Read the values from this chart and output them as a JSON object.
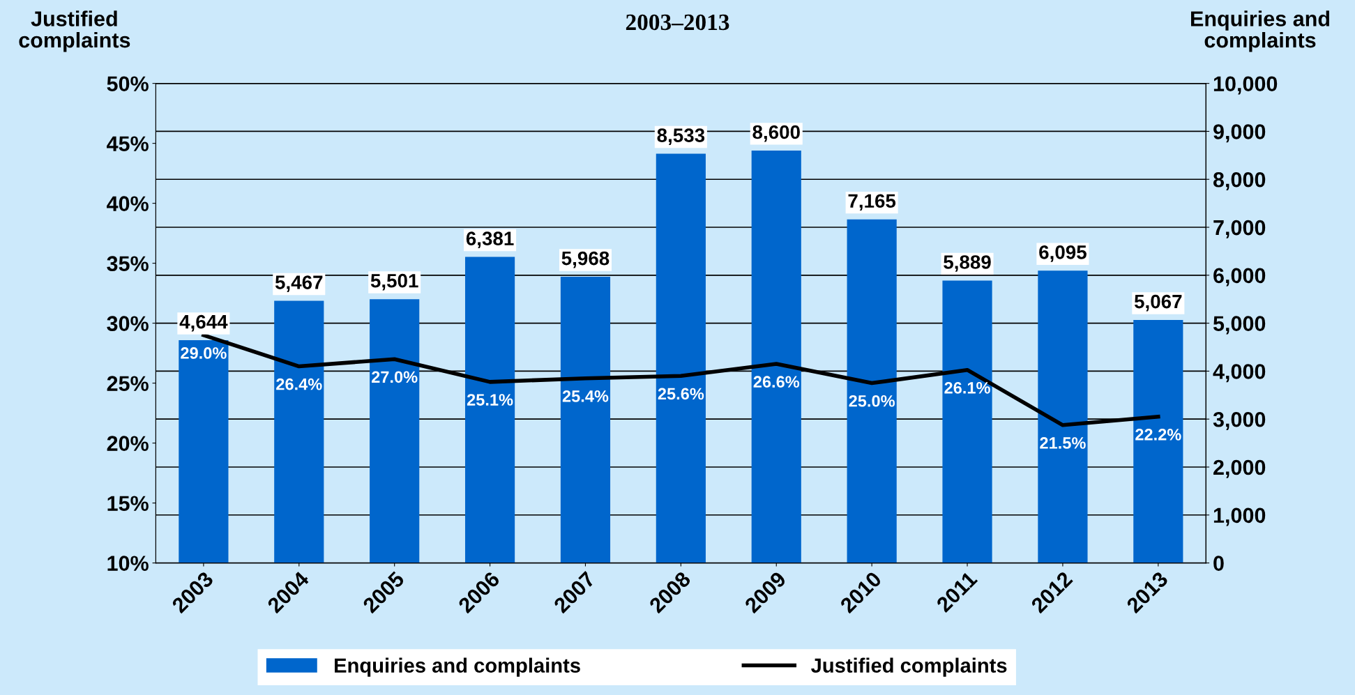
{
  "chart_data": {
    "type": "bar",
    "title": "2003–2013",
    "ylabel": "Justified complaints",
    "y2label": "Enquiries and complaints",
    "categories": [
      "2003",
      "2004",
      "2005",
      "2006",
      "2007",
      "2008",
      "2009",
      "2010",
      "2011",
      "2012",
      "2013"
    ],
    "series": [
      {
        "name": "Enquiries and complaints",
        "axis": "y2",
        "color": "#0066cc",
        "values": [
          4644,
          5467,
          5501,
          6381,
          5968,
          8533,
          8600,
          7165,
          5889,
          6095,
          5067
        ],
        "value_labels": [
          "4,644",
          "5,467",
          "5,501",
          "6,381",
          "5,968",
          "8,533",
          "8,600",
          "7,165",
          "5,889",
          "6,095",
          "5,067"
        ]
      },
      {
        "name": "Justified complaints",
        "type": "line",
        "axis": "y",
        "color": "#000000",
        "values": [
          29.0,
          26.4,
          27.0,
          25.1,
          25.4,
          25.6,
          26.6,
          25.0,
          26.1,
          21.5,
          22.2
        ],
        "value_labels": [
          "29.0%",
          "26.4%",
          "27.0%",
          "25.1%",
          "25.4%",
          "25.6%",
          "26.6%",
          "25.0%",
          "26.1%",
          "21.5%",
          "22.2%"
        ]
      }
    ],
    "ylim": [
      10,
      50
    ],
    "yticks": [
      {
        "value": 10,
        "label": "10%"
      },
      {
        "value": 15,
        "label": "15%"
      },
      {
        "value": 20,
        "label": "20%"
      },
      {
        "value": 25,
        "label": "25%"
      },
      {
        "value": 30,
        "label": "30%"
      },
      {
        "value": 35,
        "label": "35%"
      },
      {
        "value": 40,
        "label": "40%"
      },
      {
        "value": 45,
        "label": "45%"
      },
      {
        "value": 50,
        "label": "50%"
      }
    ],
    "y2lim": [
      0,
      10000
    ],
    "y2ticks": [
      {
        "value": 0,
        "label": "0"
      },
      {
        "value": 1000,
        "label": "1,000"
      },
      {
        "value": 2000,
        "label": "2,000"
      },
      {
        "value": 3000,
        "label": "3,000"
      },
      {
        "value": 4000,
        "label": "4,000"
      },
      {
        "value": 5000,
        "label": "5,000"
      },
      {
        "value": 6000,
        "label": "6,000"
      },
      {
        "value": 7000,
        "label": "7,000"
      },
      {
        "value": 8000,
        "label": "8,000"
      },
      {
        "value": 9000,
        "label": "9,000"
      },
      {
        "value": 10000,
        "label": "10,000"
      }
    ],
    "grid": "y2",
    "legend": "bottom",
    "marker": "none"
  }
}
